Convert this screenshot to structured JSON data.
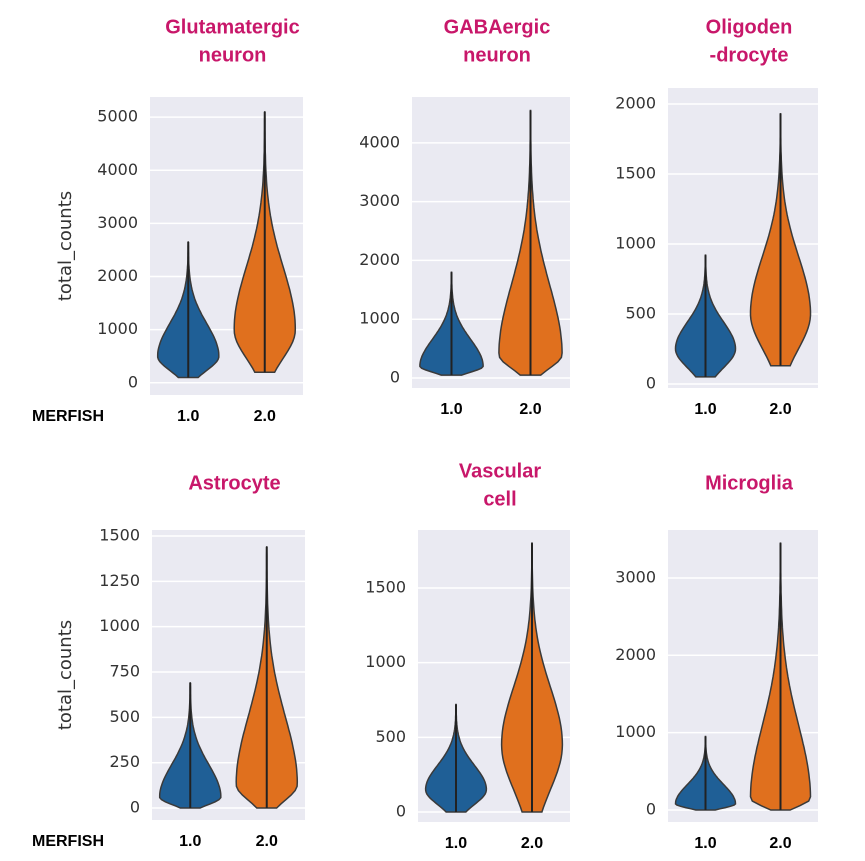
{
  "chart_data": [
    {
      "type": "violin",
      "title": [
        "Glutamatergic",
        "neuron"
      ],
      "y_label": "total_counts",
      "x_label": "MERFISH",
      "categories": [
        "1.0",
        "2.0"
      ],
      "violins": [
        {
          "color": "#1f5f96",
          "min": 100,
          "peak": 500,
          "max": 2650
        },
        {
          "color": "#e0701e",
          "min": 200,
          "peak": 1000,
          "max": 5100
        }
      ],
      "ylim": [
        -230,
        5380
      ],
      "yticks": [
        0,
        1000,
        2000,
        3000,
        4000,
        5000
      ],
      "grid": true
    },
    {
      "type": "violin",
      "title": [
        "GABAergic",
        "neuron"
      ],
      "categories": [
        "1.0",
        "2.0"
      ],
      "violins": [
        {
          "color": "#1f5f96",
          "min": 50,
          "peak": 200,
          "max": 1800
        },
        {
          "color": "#e0701e",
          "min": 50,
          "peak": 400,
          "max": 4550
        }
      ],
      "ylim": [
        -170,
        4780
      ],
      "yticks": [
        0,
        1000,
        2000,
        3000,
        4000
      ],
      "grid": true
    },
    {
      "type": "violin",
      "title": [
        "Oligoden",
        "-drocyte"
      ],
      "categories": [
        "1.0",
        "2.0"
      ],
      "violins": [
        {
          "color": "#1f5f96",
          "min": 50,
          "peak": 250,
          "max": 920
        },
        {
          "color": "#e0701e",
          "min": 130,
          "peak": 500,
          "max": 1930
        }
      ],
      "ylim": [
        -29,
        2114
      ],
      "yticks": [
        0,
        500,
        1000,
        1500,
        2000
      ],
      "grid": true
    },
    {
      "type": "violin",
      "title": [
        "Astrocyte"
      ],
      "y_label": "total_counts",
      "x_label": "MERFISH",
      "categories": [
        "1.0",
        "2.0"
      ],
      "violins": [
        {
          "color": "#1f5f96",
          "min": 0,
          "peak": 60,
          "max": 690
        },
        {
          "color": "#e0701e",
          "min": 0,
          "peak": 130,
          "max": 1440
        }
      ],
      "ylim": [
        -66,
        1533
      ],
      "yticks": [
        0,
        250,
        500,
        750,
        1000,
        1250,
        1500
      ],
      "grid": true
    },
    {
      "type": "violin",
      "title": [
        "Vascular",
        "cell"
      ],
      "categories": [
        "1.0",
        "2.0"
      ],
      "violins": [
        {
          "color": "#1f5f96",
          "min": 0,
          "peak": 150,
          "max": 720
        },
        {
          "color": "#e0701e",
          "min": 0,
          "peak": 450,
          "max": 1800
        }
      ],
      "ylim": [
        -67,
        1888
      ],
      "yticks": [
        0,
        500,
        1000,
        1500
      ],
      "grid": true
    },
    {
      "type": "violin",
      "title": [
        "Microglia"
      ],
      "categories": [
        "1.0",
        "2.0"
      ],
      "violins": [
        {
          "color": "#1f5f96",
          "min": 0,
          "peak": 80,
          "max": 950
        },
        {
          "color": "#e0701e",
          "min": 0,
          "peak": 150,
          "max": 3450
        }
      ],
      "ylim": [
        -155,
        3620
      ],
      "yticks": [
        0,
        1000,
        2000,
        3000
      ],
      "grid": true
    }
  ]
}
